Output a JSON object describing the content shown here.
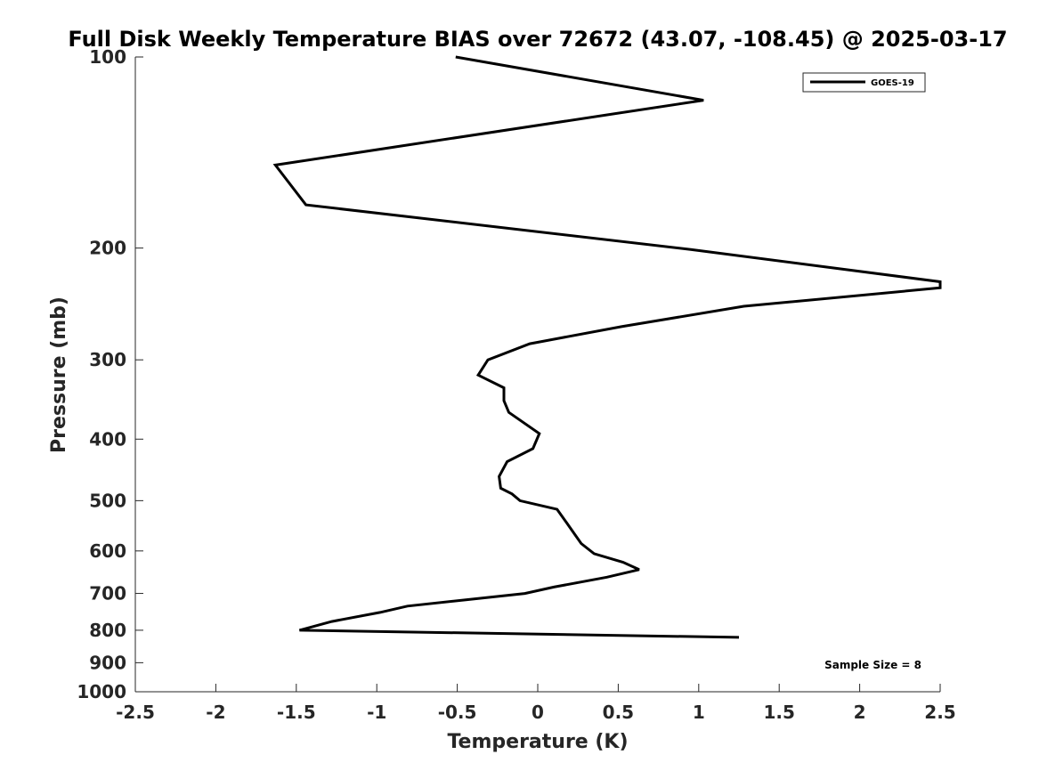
{
  "chart_data": {
    "type": "line",
    "title": "Full Disk Weekly Temperature BIAS over 72672 (43.07, -108.45) @ 2025-03-17",
    "xlabel": "Temperature (K)",
    "ylabel": "Pressure (mb)",
    "xlim": [
      -2.5,
      2.5
    ],
    "ylim": [
      100,
      1000
    ],
    "y_scale": "log",
    "y_reversed": true,
    "grid": false,
    "legend_position": "top-right",
    "x_ticks": [
      "-2.5",
      "-2",
      "-1.5",
      "-1",
      "-0.5",
      "0",
      "0.5",
      "1",
      "1.5",
      "2",
      "2.5"
    ],
    "y_ticks": [
      "100",
      "200",
      "300",
      "400",
      "500",
      "600",
      "700",
      "800",
      "900",
      "1000"
    ],
    "series": [
      {
        "name": "GOES-19",
        "color": "#000000",
        "points": [
          [
            -0.51,
            100
          ],
          [
            1.03,
            117
          ],
          [
            -1.63,
            148
          ],
          [
            -1.44,
            171
          ],
          [
            0.95,
            201
          ],
          [
            2.5,
            226
          ],
          [
            2.5,
            231
          ],
          [
            1.28,
            247
          ],
          [
            0.52,
            266
          ],
          [
            -0.05,
            283
          ],
          [
            -0.31,
            300
          ],
          [
            -0.37,
            317
          ],
          [
            -0.21,
            332
          ],
          [
            -0.21,
            348
          ],
          [
            -0.18,
            363
          ],
          [
            0.01,
            392
          ],
          [
            -0.03,
            414
          ],
          [
            -0.19,
            434
          ],
          [
            -0.24,
            458
          ],
          [
            -0.23,
            478
          ],
          [
            -0.16,
            488
          ],
          [
            -0.11,
            500
          ],
          [
            0.12,
            516
          ],
          [
            0.18,
            542
          ],
          [
            0.23,
            565
          ],
          [
            0.27,
            584
          ],
          [
            0.35,
            606
          ],
          [
            0.53,
            625
          ],
          [
            0.63,
            642
          ],
          [
            0.43,
            660
          ],
          [
            0.1,
            684
          ],
          [
            -0.08,
            700
          ],
          [
            -0.44,
            716
          ],
          [
            -0.81,
            733
          ],
          [
            -0.98,
            750
          ],
          [
            -1.28,
            775
          ],
          [
            -1.48,
            800
          ],
          [
            1.25,
            821
          ]
        ]
      }
    ],
    "annotation": "Sample Size = 8"
  }
}
